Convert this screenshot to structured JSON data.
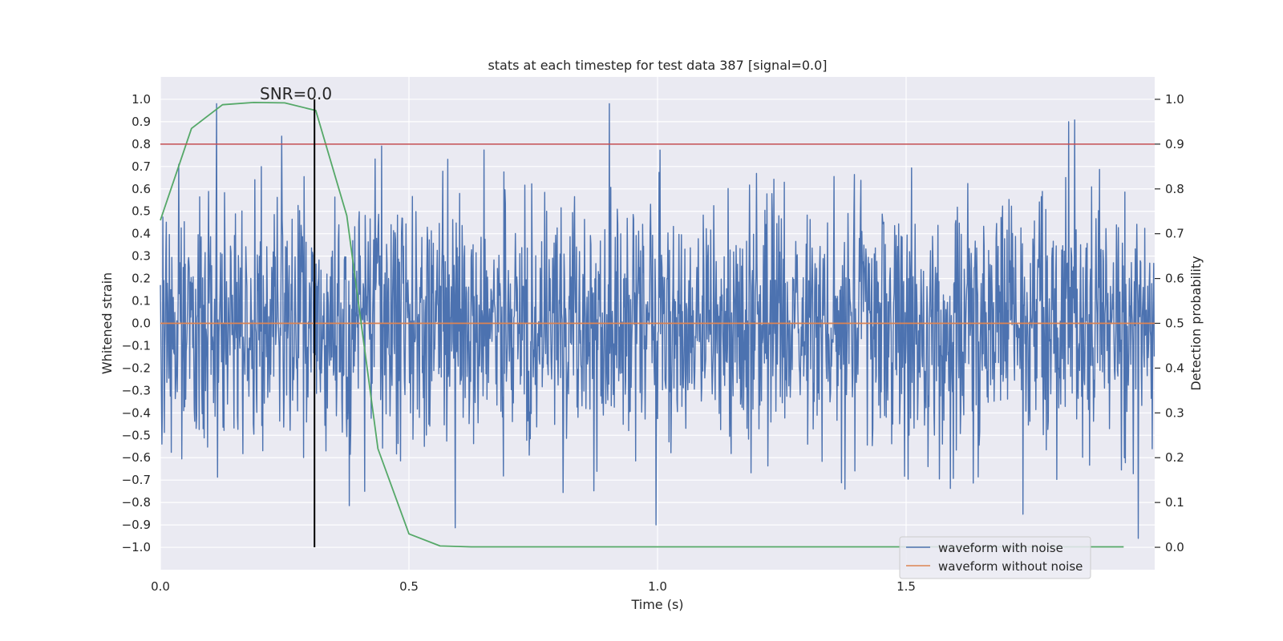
{
  "chart_data": {
    "type": "line",
    "title": "stats at each timestep for test data 387 [signal=0.0]",
    "xlabel": "Time (s)",
    "ylabel": "Whitened strain",
    "ylabel_right": "Detection probability",
    "xlim": [
      0,
      2.0
    ],
    "ylim": [
      -1.1,
      1.1
    ],
    "ylim_right": [
      -0.05,
      1.05
    ],
    "x_ticks": [
      0.0,
      0.5,
      1.0,
      1.5
    ],
    "x_tick_labels": [
      "0.0",
      "0.5",
      "1.0",
      "1.5"
    ],
    "y_ticks": [
      1.0,
      0.9,
      0.8,
      0.7,
      0.6,
      0.5,
      0.4,
      0.3,
      0.2,
      0.1,
      0.0,
      -0.1,
      -0.2,
      -0.3,
      -0.4,
      -0.5,
      -0.6,
      -0.7,
      -0.8,
      -0.9,
      -1.0
    ],
    "y_tick_labels": [
      "1.0",
      "0.9",
      "0.8",
      "0.7",
      "0.6",
      "0.5",
      "0.4",
      "0.3",
      "0.2",
      "0.1",
      "0.0",
      "−0.1",
      "−0.2",
      "−0.3",
      "−0.4",
      "−0.5",
      "−0.6",
      "−0.7",
      "−0.8",
      "−0.9",
      "−1.0"
    ],
    "y_right_ticks": [
      1.0,
      0.9,
      0.8,
      0.7,
      0.6,
      0.5,
      0.4,
      0.3,
      0.2,
      0.1,
      0.0
    ],
    "y_right_tick_labels": [
      "1.0",
      "0.9",
      "0.8",
      "0.7",
      "0.6",
      "0.5",
      "0.4",
      "0.3",
      "0.2",
      "0.1",
      "0.0"
    ],
    "grid": true,
    "annotation": {
      "text": "SNR=0.0",
      "x": 0.31
    },
    "marker_line": {
      "x": 0.31,
      "y_from": -1.0,
      "y_to": 1.0
    },
    "threshold": {
      "value": 0.9,
      "axis": "right"
    },
    "series": [
      {
        "name": "waveform with noise",
        "color": "#4c72b0",
        "axis": "left",
        "noise": {
          "n": 2000,
          "t_end": 2.0,
          "sigma": 0.28,
          "min": -0.96,
          "max": 0.98,
          "seed": 387
        }
      },
      {
        "name": "waveform without noise",
        "color": "#dd8452",
        "axis": "left",
        "x": [
          0.0,
          2.0
        ],
        "values": [
          0.0,
          0.0
        ]
      },
      {
        "name": "detection probability",
        "color": "#55a868",
        "axis": "right",
        "x": [
          0.0,
          0.0625,
          0.125,
          0.1875,
          0.25,
          0.3125,
          0.375,
          0.4375,
          0.5,
          0.5625,
          0.625,
          0.6875,
          1.0,
          1.5,
          1.9375
        ],
        "values": [
          0.73,
          0.935,
          0.988,
          0.993,
          0.992,
          0.975,
          0.74,
          0.22,
          0.03,
          0.003,
          0.001,
          0.001,
          0.001,
          0.001,
          0.001
        ]
      }
    ],
    "legend": {
      "position": "lower-right",
      "entries": [
        {
          "label": "waveform with noise",
          "color": "#4c72b0"
        },
        {
          "label": "waveform without noise",
          "color": "#dd8452"
        }
      ]
    }
  }
}
